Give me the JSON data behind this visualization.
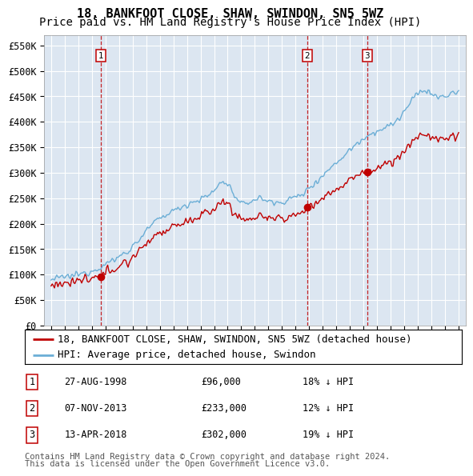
{
  "title": "18, BANKFOOT CLOSE, SHAW, SWINDON, SN5 5WZ",
  "subtitle": "Price paid vs. HM Land Registry's House Price Index (HPI)",
  "legend_line1": "18, BANKFOOT CLOSE, SHAW, SWINDON, SN5 5WZ (detached house)",
  "legend_line2": "HPI: Average price, detached house, Swindon",
  "footer1": "Contains HM Land Registry data © Crown copyright and database right 2024.",
  "footer2": "This data is licensed under the Open Government Licence v3.0.",
  "sale_points": [
    {
      "label": "1",
      "date_num": 1998.65,
      "price": 96000,
      "desc": "27-AUG-1998",
      "amount": "£96,000",
      "pct": "18% ↓ HPI"
    },
    {
      "label": "2",
      "date_num": 2013.85,
      "price": 233000,
      "desc": "07-NOV-2013",
      "amount": "£233,000",
      "pct": "12% ↓ HPI"
    },
    {
      "label": "3",
      "date_num": 2018.27,
      "price": 302000,
      "desc": "13-APR-2018",
      "amount": "£302,000",
      "pct": "19% ↓ HPI"
    }
  ],
  "ylabel_ticks": [
    0,
    50000,
    100000,
    150000,
    200000,
    250000,
    300000,
    350000,
    400000,
    450000,
    500000,
    550000
  ],
  "ylabel_labels": [
    "£0",
    "£50K",
    "£100K",
    "£150K",
    "£200K",
    "£250K",
    "£300K",
    "£350K",
    "£400K",
    "£450K",
    "£500K",
    "£550K"
  ],
  "ylim": [
    0,
    570000
  ],
  "xlim_start": 1994.5,
  "xlim_end": 2025.5,
  "hpi_color": "#6baed6",
  "price_color": "#c00000",
  "plot_bg_color": "#dce6f1",
  "grid_color": "#ffffff",
  "title_fontsize": 11,
  "subtitle_fontsize": 10,
  "tick_fontsize": 8.5,
  "legend_fontsize": 9,
  "footer_fontsize": 7.5
}
